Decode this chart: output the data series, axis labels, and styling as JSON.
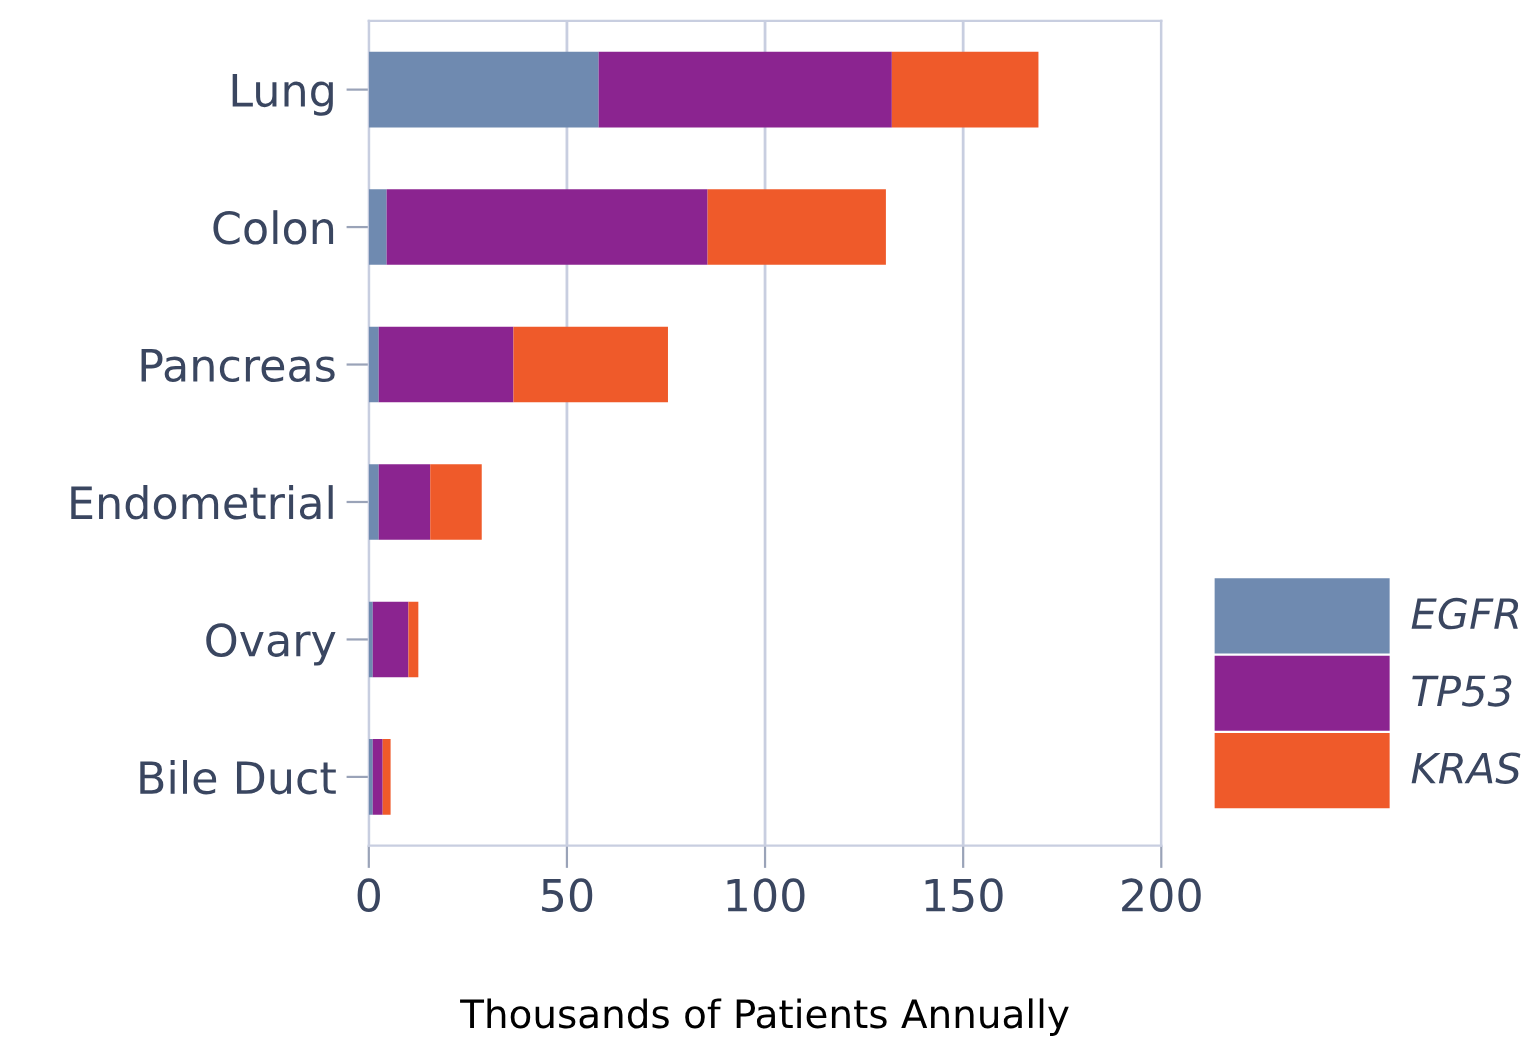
{
  "chart_data": {
    "type": "bar",
    "orientation": "horizontal",
    "stacked": true,
    "categories": [
      "Lung",
      "Colon",
      "Pancreas",
      "Endometrial",
      "Ovary",
      "Bile Duct"
    ],
    "series": [
      {
        "name": "EGFR",
        "color": "#6f8ab0",
        "values": [
          58,
          4.5,
          2.5,
          2.5,
          1,
          1
        ]
      },
      {
        "name": "TP53",
        "color": "#8b2490",
        "values": [
          74,
          81,
          34,
          13,
          9,
          2.5
        ]
      },
      {
        "name": "KRAS",
        "color": "#ef5a2a",
        "values": [
          37,
          45,
          39,
          13,
          2.5,
          2
        ]
      }
    ],
    "xlabel": "Thousands of Patients Annually",
    "xlim": [
      0,
      200
    ],
    "xticks": [
      0,
      50,
      100,
      150,
      200
    ],
    "grid": "x",
    "legend": "bottom right"
  }
}
